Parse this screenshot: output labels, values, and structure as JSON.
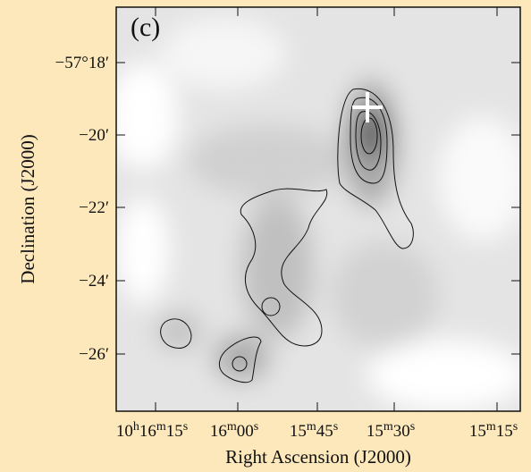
{
  "panel_label": "(c)",
  "x_axis": {
    "label": "Right Ascension (J2000)",
    "ticks": [
      "10h16m15s",
      "16m00s",
      "15m45s",
      "15m30s",
      "15m15s"
    ]
  },
  "y_axis": {
    "label": "Declination (J2000)",
    "ticks": [
      "−57°18′",
      "−20′",
      "−22′",
      "−24′",
      "−26′"
    ]
  }
}
